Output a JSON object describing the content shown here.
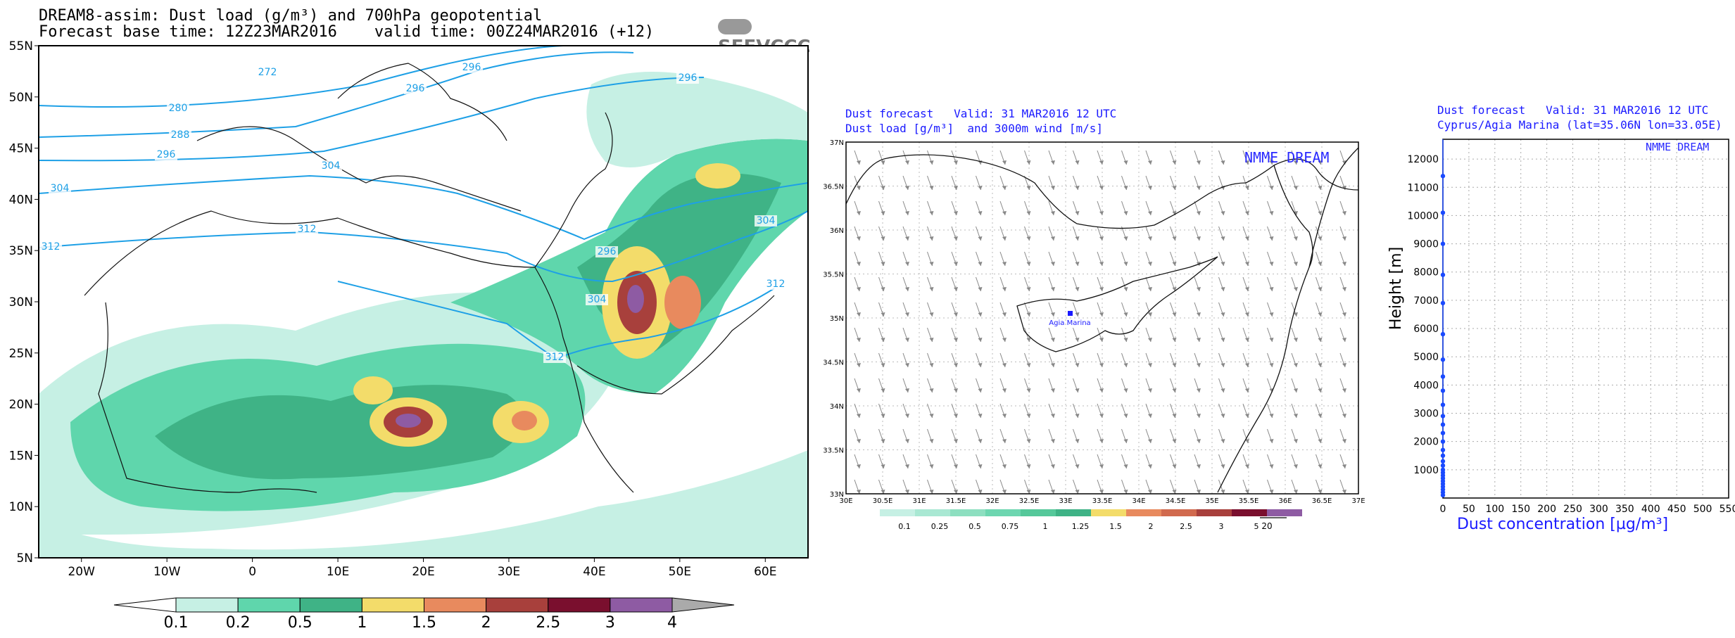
{
  "panel_map": {
    "title_line1": "DREAM8-assim: Dust load (g/m³) and 700hPa geopotential",
    "title_line2": "Forecast base time: 12Z23MAR2016    valid time: 00Z24MAR2016 (+12)",
    "logo_text": "SEEVCCC",
    "lat_labels": [
      "55N",
      "50N",
      "45N",
      "40N",
      "35N",
      "30N",
      "25N",
      "20N",
      "15N",
      "10N",
      "5N"
    ],
    "lon_labels": [
      "20W",
      "10W",
      "0",
      "10E",
      "20E",
      "30E",
      "40E",
      "50E",
      "60E"
    ],
    "contour_labels": [
      "272",
      "280",
      "288",
      "296",
      "296",
      "296",
      "296",
      "304",
      "304",
      "304",
      "304",
      "312",
      "312",
      "312",
      "312",
      "296"
    ],
    "colorbar_labels": [
      "0.1",
      "0.2",
      "0.5",
      "1",
      "1.5",
      "2",
      "2.5",
      "3",
      "4"
    ],
    "colorbar_colors": [
      "#c6f0e4",
      "#5fd6ac",
      "#3fb386",
      "#f3dc6a",
      "#e88a5e",
      "#a8403c",
      "#7a0f2e",
      "#8e5ba3"
    ]
  },
  "panel_cyprus": {
    "title_line1": "Dust forecast   Valid: 31 MAR2016 12 UTC",
    "title_line2": "Dust load [g/m³]  and 3000m wind [m/s]",
    "watermark": "NMME DREAM",
    "site_label": "Agia Marina",
    "lat_labels": [
      "37N",
      "36.5N",
      "36N",
      "35.5N",
      "35N",
      "34.5N",
      "34N",
      "33.5N",
      "33N"
    ],
    "lon_labels": [
      "30E",
      "30.5E",
      "31E",
      "31.5E",
      "32E",
      "32.5E",
      "33E",
      "33.5E",
      "34E",
      "34.5E",
      "35E",
      "35.5E",
      "36E",
      "36.5E",
      "37E"
    ],
    "colorbar_labels": [
      "0.1",
      "0.25",
      "0.5",
      "0.75",
      "1",
      "1.25",
      "1.5",
      "2",
      "2.5",
      "3",
      "5"
    ],
    "colorbar_colors": [
      "#c6f0e4",
      "#a9e8d3",
      "#8ddfc0",
      "#6dd6b0",
      "#55c89a",
      "#3fb386",
      "#f3dc6a",
      "#e88a5e",
      "#d16a4e",
      "#a8403c",
      "#7a0f2e",
      "#8e5ba3"
    ],
    "wind_ref": "20"
  },
  "panel_profile": {
    "title_line1": "Dust forecast   Valid: 31 MAR2016 12 UTC",
    "title_line2": "Cyprus/Agia Marina (lat=35.06N lon=33.05E)",
    "watermark": "NMME DREAM",
    "ylabel": "Height [m]",
    "xlabel": "Dust concentration [µg/m³]"
  },
  "chart_data": [
    {
      "type": "heatmap",
      "title": "DREAM8-assim: Dust load (g/m³) and 700hPa geopotential",
      "xlabel": "",
      "ylabel": "",
      "xlim": [
        -25,
        65
      ],
      "ylim": [
        5,
        55
      ],
      "levels": [
        0.1,
        0.2,
        0.5,
        1,
        1.5,
        2,
        2.5,
        3,
        4
      ],
      "dust_maxima": [
        {
          "lon": 18.5,
          "lat": 18.5,
          "value": 3
        },
        {
          "lon": 45,
          "lat": 30,
          "value": 3
        },
        {
          "lon": 31,
          "lat": 17.5,
          "value": 2
        },
        {
          "lon": 50,
          "lat": 30,
          "value": 2
        }
      ],
      "geopotential_contours": [
        272,
        280,
        288,
        296,
        304,
        312
      ]
    },
    {
      "type": "heatmap",
      "title": "Dust load [g/m³]  and 3000m wind [m/s]",
      "xlabel": "",
      "ylabel": "",
      "xlim": [
        30,
        37
      ],
      "ylim": [
        33,
        37
      ],
      "site": {
        "name": "Agia Marina",
        "lon": 33.05,
        "lat": 35.06
      },
      "wind_reference_ms": 20
    },
    {
      "type": "line",
      "title": "Cyprus/Agia Marina (lat=35.06N lon=33.05E)",
      "xlabel": "Dust concentration [µg/m³]",
      "ylabel": "Height [m]",
      "xlim": [
        0,
        550
      ],
      "ylim": [
        0,
        12700
      ],
      "x_ticks": [
        0,
        50,
        100,
        150,
        200,
        250,
        300,
        350,
        400,
        450,
        500,
        550
      ],
      "y_ticks": [
        1000,
        2000,
        3000,
        4000,
        5000,
        6000,
        7000,
        8000,
        9000,
        10000,
        11000,
        12000
      ],
      "series": [
        {
          "x": [
            0,
            0,
            0,
            0,
            0,
            0,
            0,
            0,
            0,
            0,
            0,
            0,
            0,
            0,
            0,
            0,
            0,
            0,
            0,
            0,
            0,
            0,
            0,
            0,
            0,
            0,
            0,
            0
          ],
          "y": [
            100,
            200,
            300,
            400,
            500,
            600,
            700,
            800,
            900,
            1000,
            1150,
            1300,
            1500,
            1700,
            2000,
            2300,
            2600,
            2900,
            3300,
            3800,
            4300,
            4900,
            5800,
            6900,
            7900,
            9000,
            10100,
            11400
          ]
        }
      ]
    }
  ]
}
